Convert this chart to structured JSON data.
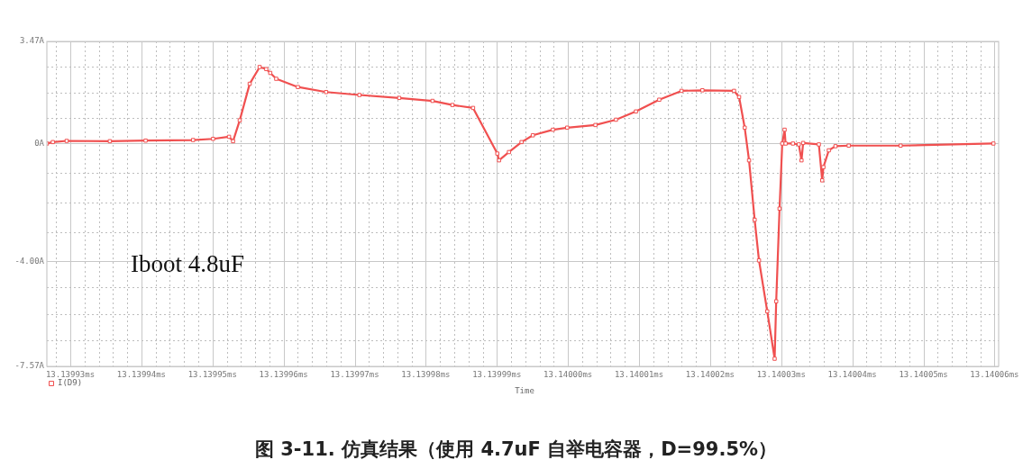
{
  "chart_data": {
    "type": "line",
    "xlabel": "Time",
    "legend": "bottom left",
    "marker": "square",
    "line_style": "solid",
    "grid": true,
    "annotations": [
      "Iboot 4.8uF",
      "图 3-11. 仿真结果（使用 4.7uF 自举电容器，D=99.5%）"
    ],
    "xlim": [
      13.1399267,
      13.14006058
    ],
    "ylim": [
      -7.57,
      3.47
    ],
    "yticks": [
      {
        "value": 3.47,
        "label": "3.47A"
      },
      {
        "value": 2.6,
        "label": null
      },
      {
        "value": 1.73,
        "label": null
      },
      {
        "value": 0.87,
        "label": null
      },
      {
        "value": 0,
        "label": "0A"
      },
      {
        "value": -1,
        "label": null
      },
      {
        "value": -2,
        "label": null
      },
      {
        "value": -3,
        "label": null
      },
      {
        "value": -4,
        "label": "-4.00A"
      },
      {
        "value": -4.89,
        "label": null
      },
      {
        "value": -5.79,
        "label": null
      },
      {
        "value": -6.68,
        "label": null
      },
      {
        "value": -7.57,
        "label": "-7.57A"
      }
    ],
    "xticks": [
      {
        "value": 13.139928,
        "label": null
      },
      {
        "value": 13.13993,
        "label": "13.13993ms"
      },
      {
        "value": 13.139932,
        "label": null
      },
      {
        "value": 13.139934,
        "label": null
      },
      {
        "value": 13.139936,
        "label": null
      },
      {
        "value": 13.139938,
        "label": null
      },
      {
        "value": 13.13994,
        "label": "13.13994ms"
      },
      {
        "value": 13.139942,
        "label": null
      },
      {
        "value": 13.139944,
        "label": null
      },
      {
        "value": 13.139946,
        "label": null
      },
      {
        "value": 13.139948,
        "label": null
      },
      {
        "value": 13.13995,
        "label": "13.13995ms"
      },
      {
        "value": 13.139952,
        "label": null
      },
      {
        "value": 13.139954,
        "label": null
      },
      {
        "value": 13.139956,
        "label": null
      },
      {
        "value": 13.139958,
        "label": null
      },
      {
        "value": 13.13996,
        "label": "13.13996ms"
      },
      {
        "value": 13.139962,
        "label": null
      },
      {
        "value": 13.139964,
        "label": null
      },
      {
        "value": 13.139966,
        "label": null
      },
      {
        "value": 13.139968,
        "label": null
      },
      {
        "value": 13.13997,
        "label": "13.13997ms"
      },
      {
        "value": 13.139972,
        "label": null
      },
      {
        "value": 13.139974,
        "label": null
      },
      {
        "value": 13.139976,
        "label": null
      },
      {
        "value": 13.139978,
        "label": null
      },
      {
        "value": 13.13998,
        "label": "13.13998ms"
      },
      {
        "value": 13.139982,
        "label": null
      },
      {
        "value": 13.139984,
        "label": null
      },
      {
        "value": 13.139986,
        "label": null
      },
      {
        "value": 13.139988,
        "label": null
      },
      {
        "value": 13.13999,
        "label": "13.13999ms"
      },
      {
        "value": 13.139992,
        "label": null
      },
      {
        "value": 13.139994,
        "label": null
      },
      {
        "value": 13.139996,
        "label": null
      },
      {
        "value": 13.139998,
        "label": null
      },
      {
        "value": 13.14,
        "label": "13.14000ms"
      },
      {
        "value": 13.140002,
        "label": null
      },
      {
        "value": 13.140004,
        "label": null
      },
      {
        "value": 13.140006,
        "label": null
      },
      {
        "value": 13.140008,
        "label": null
      },
      {
        "value": 13.14001,
        "label": "13.14001ms"
      },
      {
        "value": 13.140012,
        "label": null
      },
      {
        "value": 13.140014,
        "label": null
      },
      {
        "value": 13.140016,
        "label": null
      },
      {
        "value": 13.140018,
        "label": null
      },
      {
        "value": 13.14002,
        "label": "13.14002ms"
      },
      {
        "value": 13.140022,
        "label": null
      },
      {
        "value": 13.140024,
        "label": null
      },
      {
        "value": 13.140026,
        "label": null
      },
      {
        "value": 13.140028,
        "label": null
      },
      {
        "value": 13.14003,
        "label": "13.14003ms"
      },
      {
        "value": 13.140032,
        "label": null
      },
      {
        "value": 13.140034,
        "label": null
      },
      {
        "value": 13.140036,
        "label": null
      },
      {
        "value": 13.140038,
        "label": null
      },
      {
        "value": 13.14004,
        "label": "13.14004ms"
      },
      {
        "value": 13.140042,
        "label": null
      },
      {
        "value": 13.140044,
        "label": null
      },
      {
        "value": 13.140046,
        "label": null
      },
      {
        "value": 13.140048,
        "label": null
      },
      {
        "value": 13.14005,
        "label": "13.14005ms"
      },
      {
        "value": 13.140052,
        "label": null
      },
      {
        "value": 13.140054,
        "label": null
      },
      {
        "value": 13.140056,
        "label": null
      },
      {
        "value": 13.140058,
        "label": null
      },
      {
        "value": 13.14006,
        "label": "13.14006ms"
      }
    ],
    "series": [
      {
        "name": "I(D9)",
        "color": "#f05050",
        "x": [
          13.1399267,
          13.13992754,
          13.13992949,
          13.13993556,
          13.13994059,
          13.13994727,
          13.13995008,
          13.13995232,
          13.13995289,
          13.13995383,
          13.13995523,
          13.13995663,
          13.13995756,
          13.13995812,
          13.13995896,
          13.13996201,
          13.13996598,
          13.13997066,
          13.13997626,
          13.13998095,
          13.13998375,
          13.13998665,
          13.13999006,
          13.1399903,
          13.1399917,
          13.13999347,
          13.13999506,
          13.13999788,
          13.13999989,
          13.14000386,
          13.14000675,
          13.14000956,
          13.14001284,
          13.14001597,
          13.14001891,
          13.14002336,
          13.14002407,
          13.14002486,
          13.14002547,
          13.14002626,
          13.14002687,
          13.14002803,
          13.14002907,
          13.14002929,
          13.14002976,
          13.14003014,
          13.14003047,
          13.14003061,
          13.14003164,
          13.14003247,
          13.14003285,
          13.14003308,
          13.14003529,
          13.14003576,
          13.14003593,
          13.14003669,
          13.14003763,
          13.14003949,
          13.14004679,
          13.14005984
        ],
        "values": [
          0,
          0.05,
          0.09,
          0.08,
          0.1,
          0.12,
          0.16,
          0.23,
          0.08,
          0.79,
          2.03,
          2.6,
          2.53,
          2.4,
          2.2,
          1.92,
          1.75,
          1.65,
          1.55,
          1.45,
          1.31,
          1.21,
          -0.34,
          -0.57,
          -0.29,
          0.05,
          0.28,
          0.47,
          0.54,
          0.63,
          0.81,
          1.09,
          1.49,
          1.79,
          1.81,
          1.79,
          1.58,
          0.54,
          -0.57,
          -2.59,
          -3.97,
          -5.7,
          -7.31,
          -5.36,
          -2.21,
          0,
          0.47,
          0,
          0,
          -0.03,
          -0.57,
          0.02,
          -0.03,
          -1.25,
          -0.8,
          -0.23,
          -0.09,
          -0.07,
          -0.07,
          0
        ]
      }
    ]
  }
}
